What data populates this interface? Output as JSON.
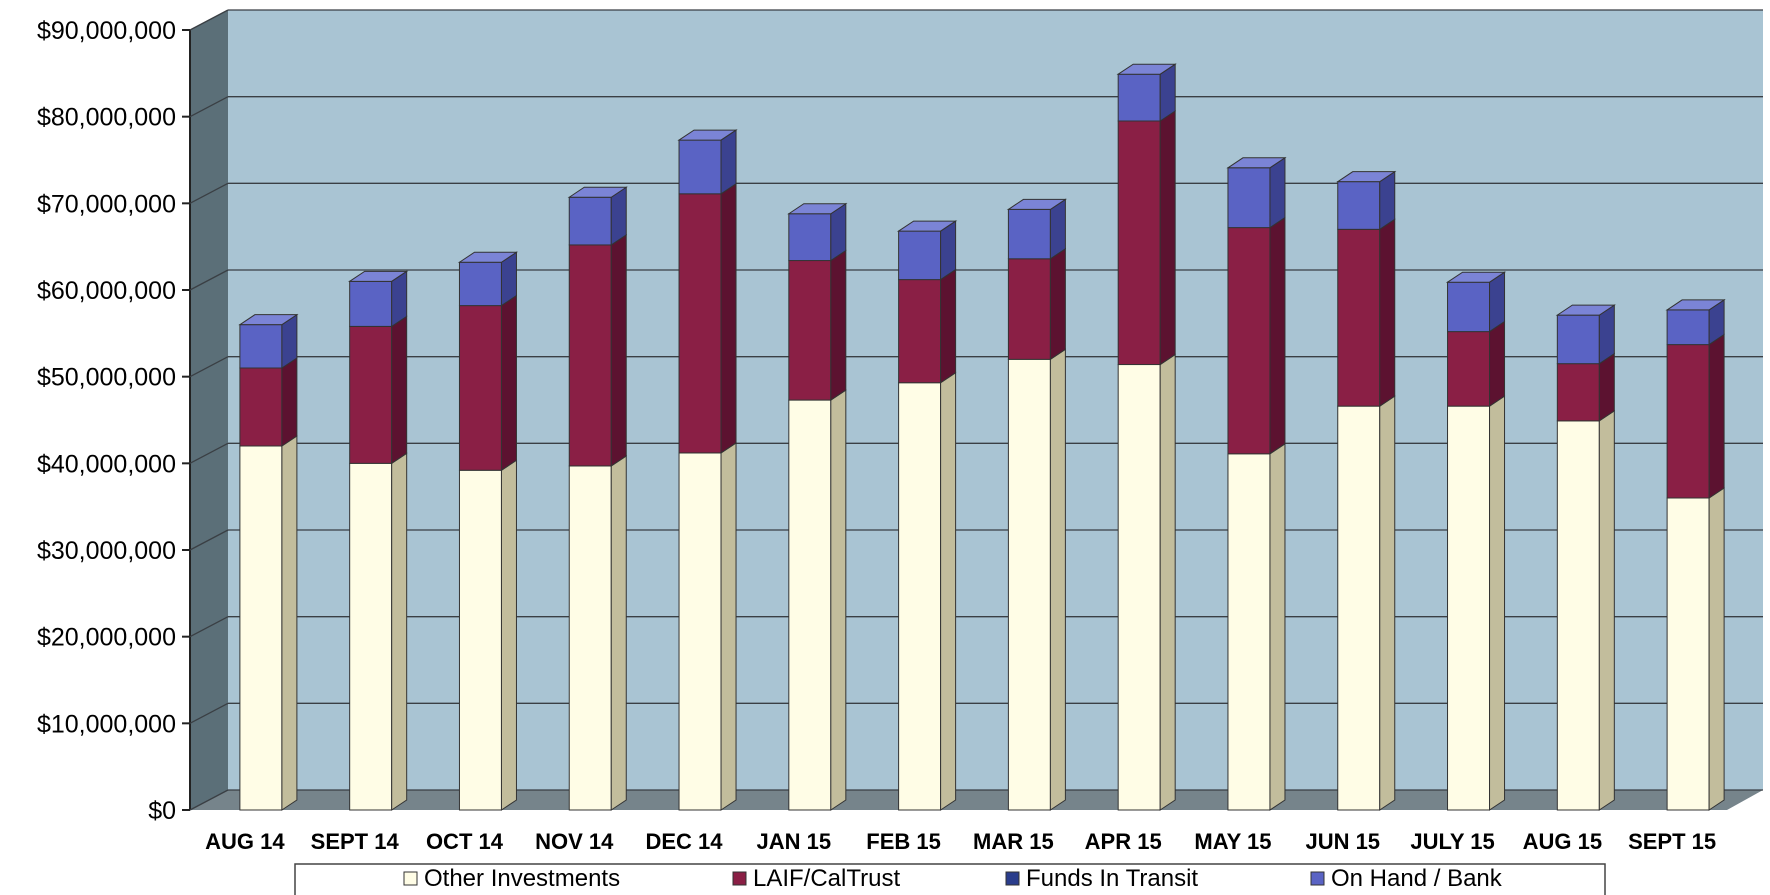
{
  "chart_data": {
    "type": "bar",
    "stacked": true,
    "three_d": true,
    "categories": [
      "AUG 14",
      "SEPT 14",
      "OCT 14",
      "NOV 14",
      "DEC 14",
      "JAN 15",
      "FEB 15",
      "MAR 15",
      "APR 15",
      "MAY 15",
      "JUN 15",
      "JULY 15",
      "AUG 15",
      "SEPT 15"
    ],
    "series": [
      {
        "name": "Other Investments",
        "color": "#fffde6",
        "side": "#c2bd9c",
        "top": "#f5f1d2",
        "values": [
          42000000,
          40000000,
          39200000,
          39700000,
          41200000,
          47300000,
          49300000,
          52000000,
          51400000,
          41100000,
          46600000,
          46600000,
          44900000,
          36000000
        ]
      },
      {
        "name": "LAIF/CalTrust",
        "color": "#8a1f45",
        "side": "#5c1230",
        "top": "#a3345a",
        "values": [
          9000000,
          15800000,
          19000000,
          25500000,
          29900000,
          16100000,
          11900000,
          11600000,
          28100000,
          26100000,
          20400000,
          8600000,
          6600000,
          17700000
        ]
      },
      {
        "name": "Funds In Transit",
        "color": "#2a3d8c",
        "side": "#1a285e",
        "top": "#3b54ad",
        "values": [
          0,
          0,
          0,
          0,
          0,
          0,
          0,
          0,
          0,
          0,
          0,
          0,
          0,
          0
        ]
      },
      {
        "name": "On Hand / Bank",
        "color": "#5a63c4",
        "side": "#3b4290",
        "top": "#7b84d6",
        "values": [
          5000000,
          5200000,
          5000000,
          5500000,
          6200000,
          5400000,
          5600000,
          5700000,
          5400000,
          6900000,
          5500000,
          5700000,
          5600000,
          4000000
        ]
      }
    ],
    "ylim": [
      0,
      90000000
    ],
    "yticks": [
      "$0",
      "$10,000,000",
      "$20,000,000",
      "$30,000,000",
      "$40,000,000",
      "$50,000,000",
      "$60,000,000",
      "$70,000,000",
      "$80,000,000",
      "$90,000,000"
    ],
    "grid": true,
    "legend_position": "bottom",
    "colors": {
      "wall": "#a9c4d3",
      "side_wall": "#5b6f78",
      "floor": "#76848b",
      "grid": "#3a3f44"
    }
  }
}
